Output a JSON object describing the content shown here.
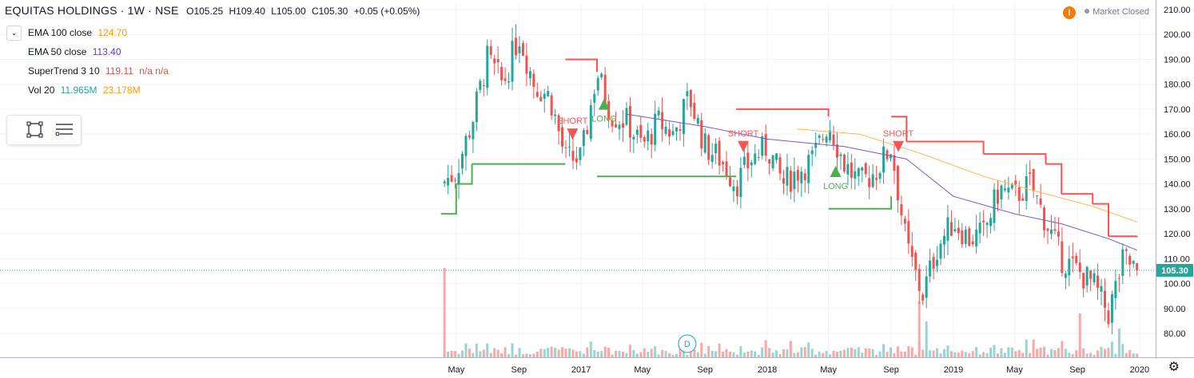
{
  "header": {
    "title": "EQUITAS HOLDINGS · 1W · NSE",
    "open": "O105.25",
    "high": "H109.40",
    "low": "L105.00",
    "close": "C105.30",
    "change": "+0.05 (+0.05%)"
  },
  "indicators": [
    {
      "label": "EMA 100 close",
      "value": "124.70",
      "color": "#ff9800"
    },
    {
      "label": "EMA 50 close",
      "value": "113.40",
      "color": "#673ab7"
    },
    {
      "label": "SuperTrend 3 10",
      "value": "119.11",
      "extra": "n/a  n/a",
      "color": "#f44336"
    },
    {
      "label": "Vol 20",
      "value": "11.965M",
      "value2": "23.178M",
      "color": "#26a69a",
      "color2": "#ff9800"
    }
  ],
  "status": {
    "market": "Market Closed",
    "warning": "!"
  },
  "toolbar": {
    "icons": [
      "rectangle-select-icon",
      "list-settings-icon"
    ]
  },
  "colors": {
    "up": "#26a69a",
    "down": "#ef5350",
    "vol_up": "#9ad4ce",
    "vol_down": "#f7a9a7",
    "supertrend_up": "#4caf50",
    "supertrend_down": "#ff5252",
    "ema100": "#ffb74d",
    "ema50": "#7e57c2"
  },
  "chart_data": {
    "type": "candlestick",
    "xlabels": [
      "May",
      "Sep",
      "2017",
      "May",
      "Sep",
      "2018",
      "May",
      "Sep",
      "2019",
      "May",
      "Sep",
      "2020"
    ],
    "yticks": [
      "210.00",
      "200.00",
      "190.00",
      "180.00",
      "170.00",
      "160.00",
      "150.00",
      "140.00",
      "130.00",
      "120.00",
      "110.00",
      "100.00",
      "90.00",
      "80.00"
    ],
    "ylim": [
      70,
      212
    ],
    "last_price": "105.30",
    "last_value": 105.3,
    "signals": [
      {
        "text": "SHORT",
        "kind": "short",
        "x": "2016-12",
        "y": 160
      },
      {
        "text": "LONG",
        "kind": "long",
        "x": "2017-02",
        "y": 172
      },
      {
        "text": "SHORT",
        "kind": "short",
        "x": "2017-11",
        "y": 155
      },
      {
        "text": "LONG",
        "kind": "long",
        "x": "2018-05",
        "y": 145
      },
      {
        "text": "SHORT",
        "kind": "short",
        "x": "2018-09",
        "y": 155
      }
    ],
    "volume_marker": "D",
    "key_closes": [
      {
        "t": "2016-04",
        "v": 140
      },
      {
        "t": "2016-05",
        "v": 145
      },
      {
        "t": "2016-06",
        "v": 165
      },
      {
        "t": "2016-07",
        "v": 190
      },
      {
        "t": "2016-08",
        "v": 180
      },
      {
        "t": "2016-09",
        "v": 200
      },
      {
        "t": "2016-10",
        "v": 180
      },
      {
        "t": "2016-11",
        "v": 175
      },
      {
        "t": "2016-12",
        "v": 150
      },
      {
        "t": "2017-01",
        "v": 150
      },
      {
        "t": "2017-02",
        "v": 185
      },
      {
        "t": "2017-03",
        "v": 168
      },
      {
        "t": "2017-04",
        "v": 165
      },
      {
        "t": "2017-05",
        "v": 155
      },
      {
        "t": "2017-06",
        "v": 165
      },
      {
        "t": "2017-07",
        "v": 160
      },
      {
        "t": "2017-08",
        "v": 175
      },
      {
        "t": "2017-09",
        "v": 155
      },
      {
        "t": "2017-10",
        "v": 150
      },
      {
        "t": "2017-11",
        "v": 140
      },
      {
        "t": "2017-12",
        "v": 150
      },
      {
        "t": "2018-01",
        "v": 155
      },
      {
        "t": "2018-02",
        "v": 140
      },
      {
        "t": "2018-03",
        "v": 145
      },
      {
        "t": "2018-04",
        "v": 150
      },
      {
        "t": "2018-05",
        "v": 165
      },
      {
        "t": "2018-06",
        "v": 148
      },
      {
        "t": "2018-07",
        "v": 140
      },
      {
        "t": "2018-08",
        "v": 145
      },
      {
        "t": "2018-09",
        "v": 155
      },
      {
        "t": "2018-10",
        "v": 115
      },
      {
        "t": "2018-11",
        "v": 95
      },
      {
        "t": "2018-12",
        "v": 115
      },
      {
        "t": "2019-01",
        "v": 125
      },
      {
        "t": "2019-02",
        "v": 118
      },
      {
        "t": "2019-03",
        "v": 120
      },
      {
        "t": "2019-04",
        "v": 138
      },
      {
        "t": "2019-05",
        "v": 135
      },
      {
        "t": "2019-06",
        "v": 140
      },
      {
        "t": "2019-07",
        "v": 125
      },
      {
        "t": "2019-08",
        "v": 110
      },
      {
        "t": "2019-09",
        "v": 105
      },
      {
        "t": "2019-10",
        "v": 100
      },
      {
        "t": "2019-11",
        "v": 88
      },
      {
        "t": "2019-12",
        "v": 110
      },
      {
        "t": "2019-12-27",
        "v": 105.3
      }
    ],
    "supertrend": [
      {
        "t": "2016-04",
        "v": 128,
        "dir": "up"
      },
      {
        "t": "2016-05",
        "v": 140,
        "dir": "up"
      },
      {
        "t": "2016-06",
        "v": 148,
        "dir": "up"
      },
      {
        "t": "2016-12",
        "v": 148,
        "dir": "up"
      },
      {
        "t": "2016-12",
        "v": 190,
        "dir": "down"
      },
      {
        "t": "2017-02",
        "v": 185,
        "dir": "down"
      },
      {
        "t": "2017-02",
        "v": 143,
        "dir": "up"
      },
      {
        "t": "2017-11",
        "v": 143,
        "dir": "up"
      },
      {
        "t": "2017-11",
        "v": 170,
        "dir": "down"
      },
      {
        "t": "2018-05",
        "v": 167,
        "dir": "down"
      },
      {
        "t": "2018-05",
        "v": 130,
        "dir": "up"
      },
      {
        "t": "2018-09",
        "v": 135,
        "dir": "up"
      },
      {
        "t": "2018-09",
        "v": 167,
        "dir": "down"
      },
      {
        "t": "2018-10",
        "v": 157,
        "dir": "down"
      },
      {
        "t": "2019-03",
        "v": 152,
        "dir": "down"
      },
      {
        "t": "2019-07",
        "v": 148,
        "dir": "down"
      },
      {
        "t": "2019-08",
        "v": 136,
        "dir": "down"
      },
      {
        "t": "2019-10",
        "v": 132,
        "dir": "down"
      },
      {
        "t": "2019-11",
        "v": 119,
        "dir": "down"
      },
      {
        "t": "2019-12-27",
        "v": 119.11,
        "dir": "down"
      }
    ],
    "ema50": [
      {
        "t": "2017-04",
        "v": 168
      },
      {
        "t": "2017-09",
        "v": 163
      },
      {
        "t": "2018-01",
        "v": 158
      },
      {
        "t": "2018-06",
        "v": 155
      },
      {
        "t": "2018-10",
        "v": 150
      },
      {
        "t": "2019-01",
        "v": 135
      },
      {
        "t": "2019-05",
        "v": 128
      },
      {
        "t": "2019-08",
        "v": 124
      },
      {
        "t": "2019-11",
        "v": 118
      },
      {
        "t": "2019-12-27",
        "v": 113.4
      }
    ],
    "ema100": [
      {
        "t": "2018-03",
        "v": 162
      },
      {
        "t": "2018-07",
        "v": 160
      },
      {
        "t": "2018-11",
        "v": 152
      },
      {
        "t": "2019-03",
        "v": 143
      },
      {
        "t": "2019-07",
        "v": 136
      },
      {
        "t": "2019-10",
        "v": 131
      },
      {
        "t": "2019-12-27",
        "v": 124.7
      }
    ]
  }
}
